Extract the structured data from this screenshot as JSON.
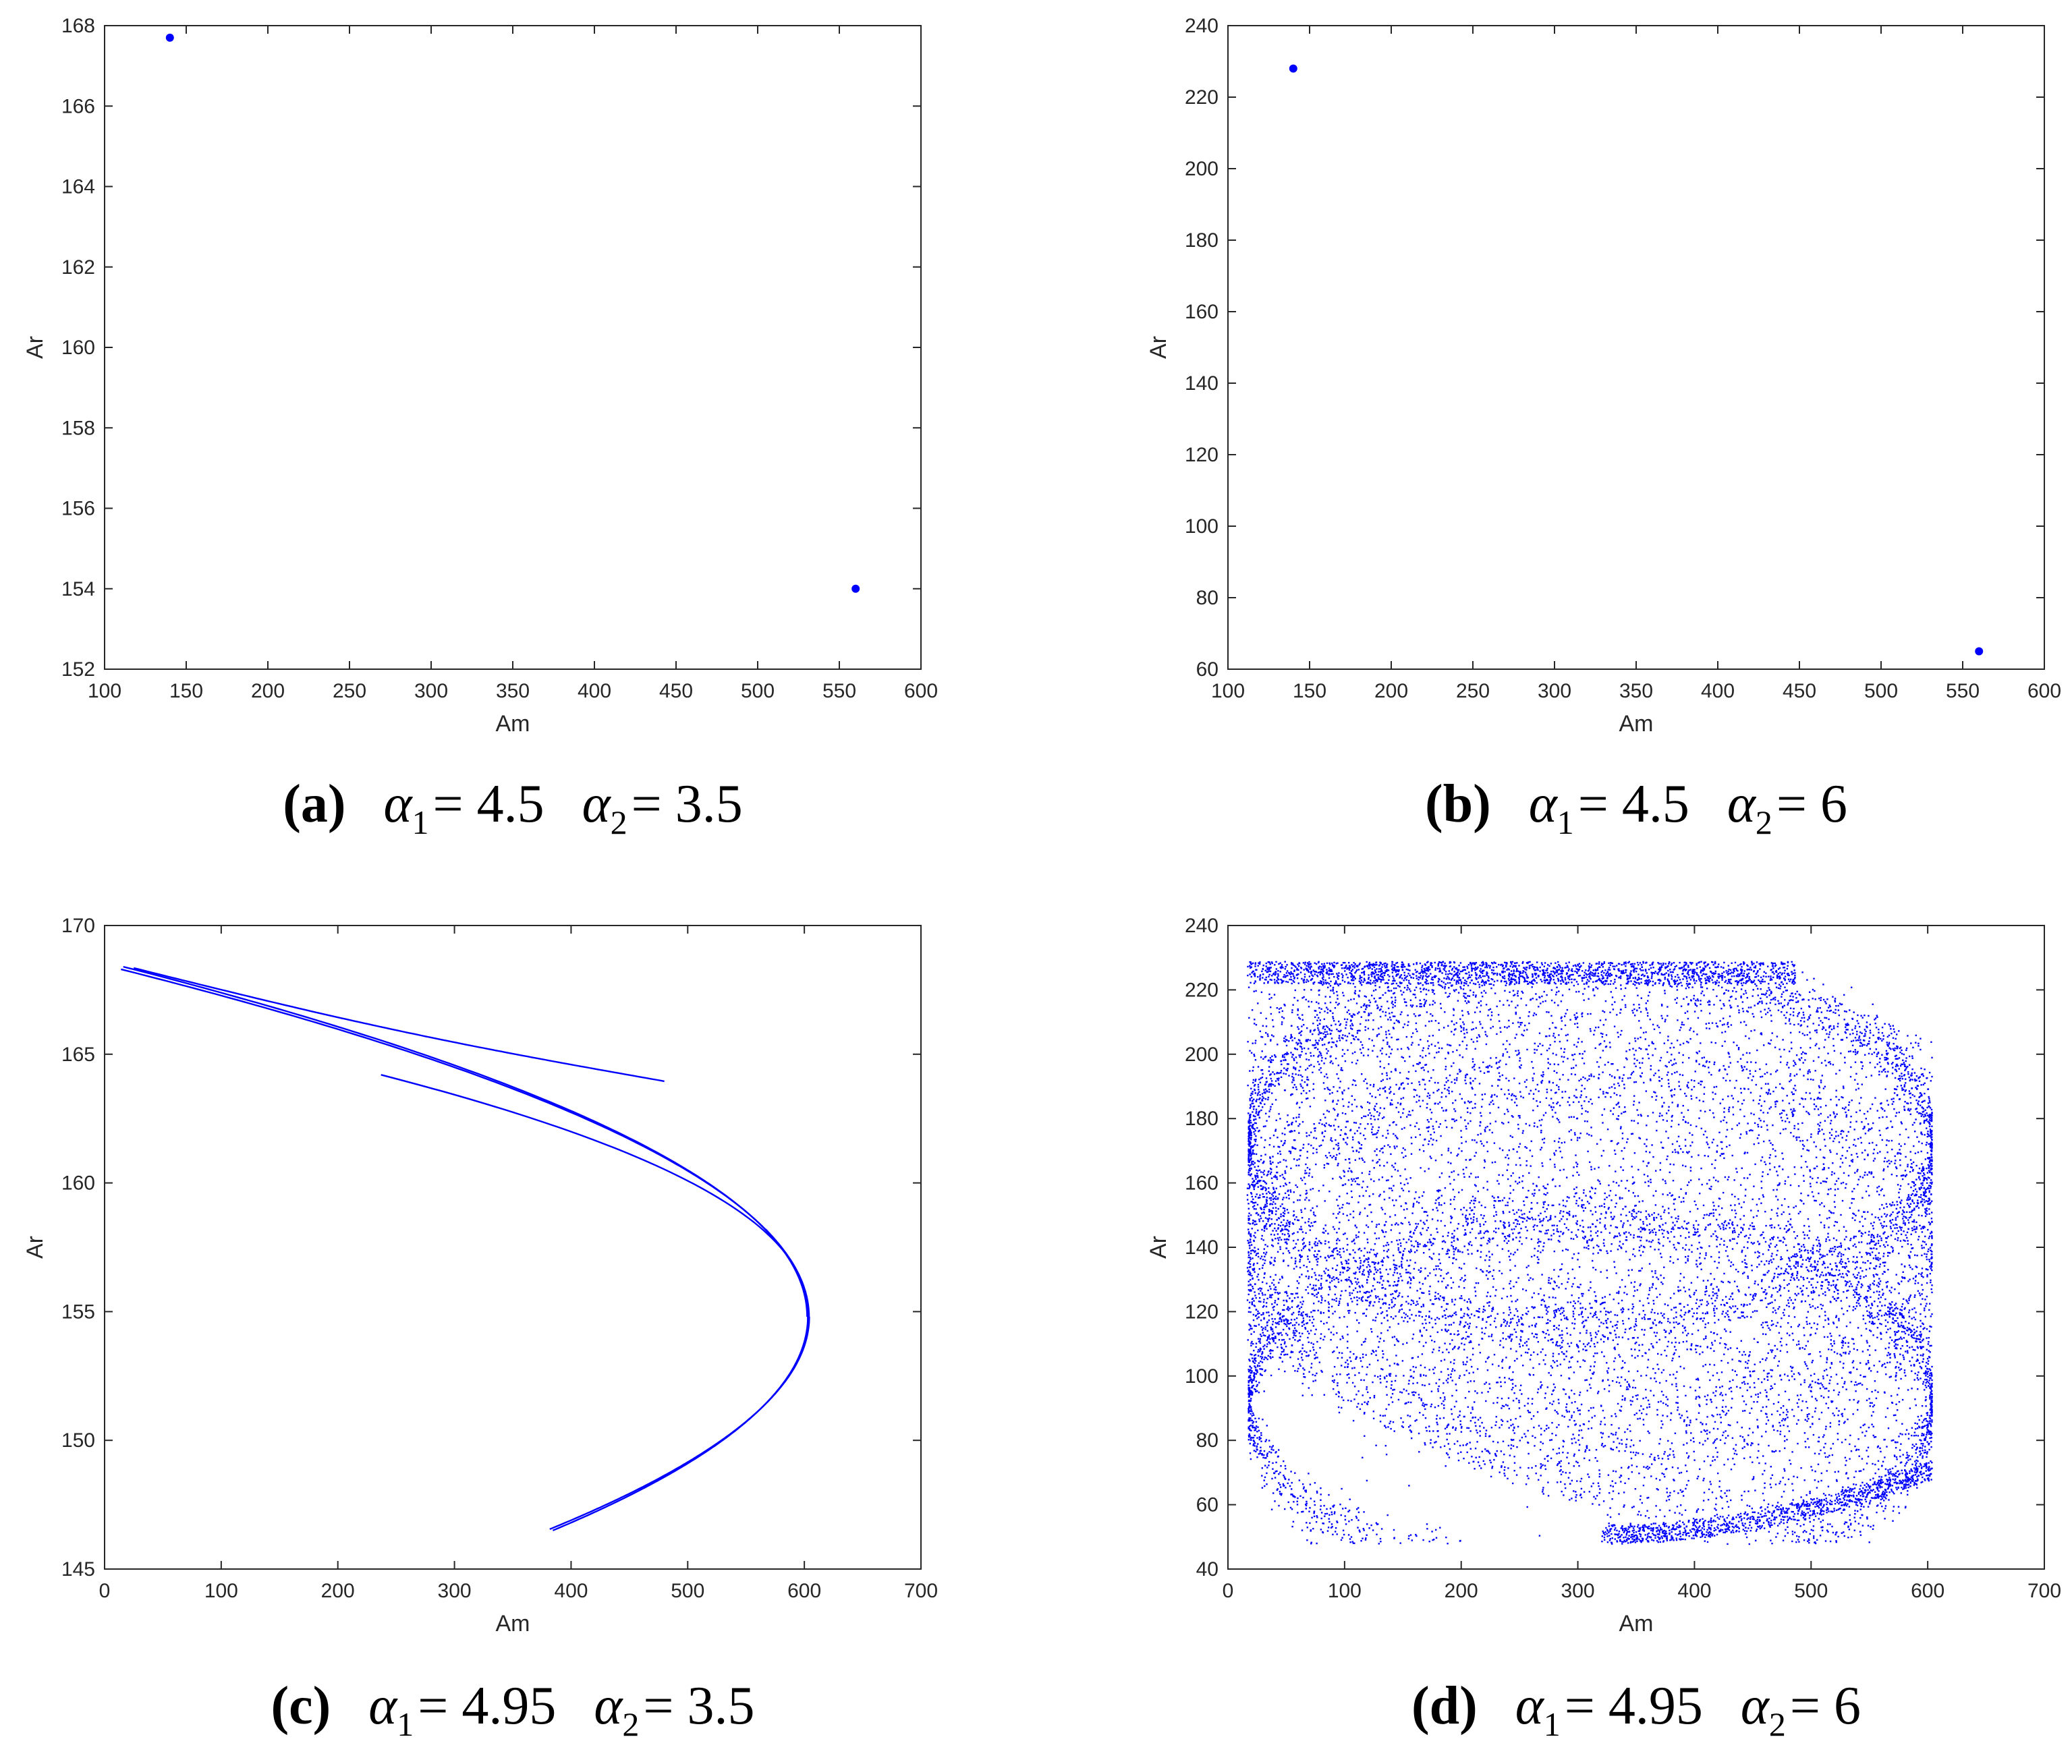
{
  "colors": {
    "series": "#0000ff",
    "axis": "#262626",
    "text": "#000000"
  },
  "chart_data": [
    {
      "type": "scatter",
      "xlabel": "Am",
      "ylabel": "Ar",
      "xlim": [
        100,
        600
      ],
      "ylim": [
        152,
        168
      ],
      "xticks": [
        100,
        150,
        200,
        250,
        300,
        350,
        400,
        450,
        500,
        550,
        600
      ],
      "yticks": [
        152,
        154,
        156,
        158,
        160,
        162,
        164,
        166,
        168
      ],
      "points": [
        [
          140,
          167.7
        ],
        [
          560,
          154.0
        ]
      ],
      "caption": {
        "letter": "(a)",
        "p1": "α",
        "s1": "1",
        "e1": "= 4.5",
        "p2": "α",
        "s2": "2",
        "e2": "= 3.5"
      }
    },
    {
      "type": "scatter",
      "xlabel": "Am",
      "ylabel": "Ar",
      "xlim": [
        100,
        600
      ],
      "ylim": [
        60,
        240
      ],
      "xticks": [
        100,
        150,
        200,
        250,
        300,
        350,
        400,
        450,
        500,
        550,
        600
      ],
      "yticks": [
        60,
        80,
        100,
        120,
        140,
        160,
        180,
        200,
        220,
        240
      ],
      "points": [
        [
          140,
          228
        ],
        [
          560,
          65
        ]
      ],
      "caption": {
        "letter": "(b)",
        "p1": "α",
        "s1": "1",
        "e1": "= 4.5",
        "p2": "α",
        "s2": "2",
        "e2": "= 6"
      }
    },
    {
      "type": "line",
      "xlabel": "Am",
      "ylabel": "Ar",
      "xlim": [
        0,
        700
      ],
      "ylim": [
        145,
        170
      ],
      "xticks": [
        0,
        100,
        200,
        300,
        400,
        500,
        600,
        700
      ],
      "yticks": [
        145,
        150,
        155,
        160,
        165,
        170
      ],
      "attractor": {
        "vertex_x": 603,
        "vertex_y": 154.8,
        "x_min": 16,
        "upper_y": 168.4,
        "lower_end": [
          318,
          146.5
        ]
      },
      "caption": {
        "letter": "(c)",
        "p1": "α",
        "s1": "1",
        "e1": "= 4.95",
        "p2": "α",
        "s2": "2",
        "e2": "= 3.5"
      }
    },
    {
      "type": "scatter",
      "xlabel": "Am",
      "ylabel": "Ar",
      "xlim": [
        0,
        700
      ],
      "ylim": [
        40,
        240
      ],
      "xticks": [
        0,
        100,
        200,
        300,
        400,
        500,
        600,
        700
      ],
      "yticks": [
        40,
        60,
        80,
        100,
        120,
        140,
        160,
        180,
        200,
        220,
        240
      ],
      "attractor": {
        "x_min": 16,
        "x_max": 603,
        "y_min": 48,
        "y_max": 229
      },
      "caption": {
        "letter": "(d)",
        "p1": "α",
        "s1": "1",
        "e1": "= 4.95",
        "p2": "α",
        "s2": "2",
        "e2": "= 6"
      }
    }
  ]
}
